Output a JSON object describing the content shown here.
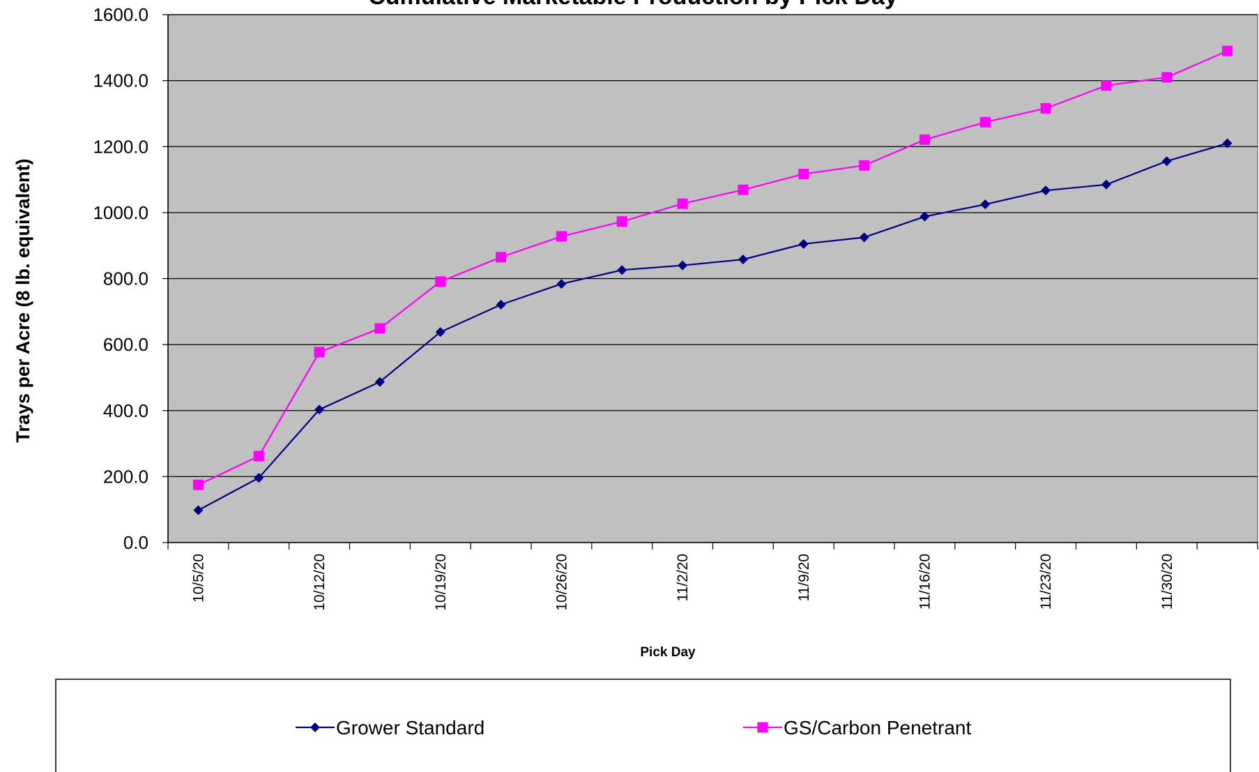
{
  "chart_data": {
    "type": "line",
    "title": "Cumulative Marketable Production by Pick Day",
    "xlabel": "Pick Day",
    "ylabel": "Trays per Acre (8 lb. equivalent)",
    "ylim": [
      0,
      1600
    ],
    "yticks": [
      "0.0",
      "200.0",
      "400.0",
      "600.0",
      "800.0",
      "1000.0",
      "1200.0",
      "1400.0",
      "1600.0"
    ],
    "x": [
      "10/5/2020",
      "10/8/2020",
      "10/12/2020",
      "10/15/2020",
      "10/19/2020",
      "10/22/2020",
      "10/26/2020",
      "10/29/2020",
      "11/2/2020",
      "11/5/2020",
      "11/9/2020",
      "11/12/2020",
      "11/16/2020",
      "11/19/2020",
      "11/23/2020",
      "11/26/2020",
      "11/30/2020",
      "12/3/2020"
    ],
    "xtick_labels": [
      "10/5/20",
      "10/12/20",
      "10/19/20",
      "10/26/20",
      "11/2/20",
      "11/9/20",
      "11/16/20",
      "11/23/20",
      "11/30/20"
    ],
    "grid": "horizontal",
    "legend_position": "bottom",
    "colors": {
      "plot_bg": "#c0c0c0",
      "grower_standard": "#000080",
      "carbon_penetrant": "#ff00ff"
    },
    "series": [
      {
        "name": "Grower Standard",
        "marker": "diamond",
        "values": [
          98,
          196,
          403,
          487,
          638,
          721,
          784,
          826,
          840,
          858,
          905,
          925,
          988,
          1025,
          1067,
          1085,
          1156,
          1210
        ]
      },
      {
        "name": "GS/Carbon Penetrant",
        "marker": "square",
        "values": [
          175,
          262,
          577,
          649,
          791,
          865,
          928,
          973,
          1027,
          1069,
          1117,
          1143,
          1221,
          1274,
          1316,
          1385,
          1410,
          1490
        ]
      }
    ]
  }
}
